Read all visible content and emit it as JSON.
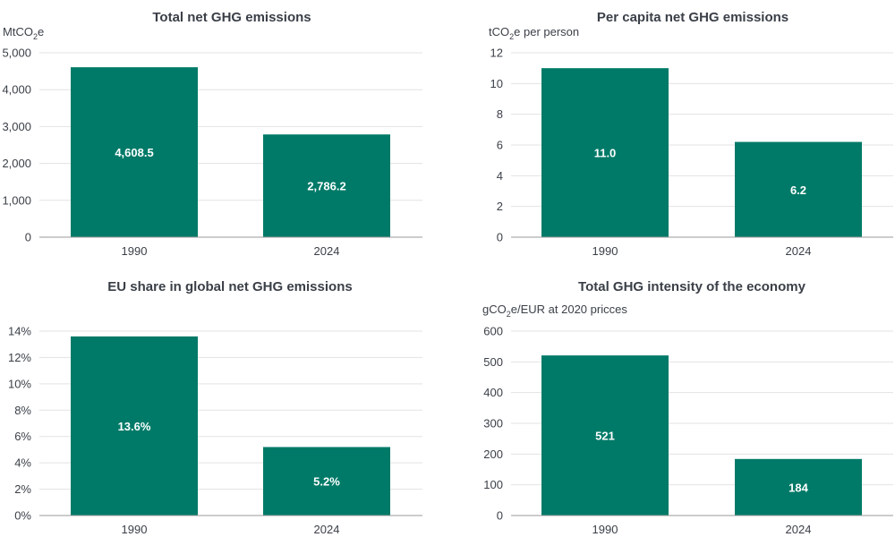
{
  "colors": {
    "bar": "#007a68",
    "grid": "#e3e3e3",
    "text": "#3a3f47",
    "label": "#ffffff"
  },
  "chart_data": [
    {
      "type": "bar",
      "title": "Total net GHG emissions",
      "unit_prefix": "MtCO",
      "unit_sub": "2",
      "unit_suffix": "e",
      "categories": [
        "1990",
        "2024"
      ],
      "values": [
        4608.5,
        2786.2
      ],
      "value_labels": [
        "4,608.5",
        "2,786.2"
      ],
      "ylim": [
        0,
        5000
      ],
      "yticks": [
        0,
        1000,
        2000,
        3000,
        4000,
        5000
      ],
      "ytick_labels": [
        "0",
        "1,000",
        "2,000",
        "3,000",
        "4,000",
        "5,000"
      ],
      "grid": true,
      "legend": "none"
    },
    {
      "type": "bar",
      "title": "Per capita net GHG emissions",
      "unit_prefix": "tCO",
      "unit_sub": "2",
      "unit_suffix": "e per person",
      "categories": [
        "1990",
        "2024"
      ],
      "values": [
        11.0,
        6.2
      ],
      "value_labels": [
        "11.0",
        "6.2"
      ],
      "ylim": [
        0,
        12
      ],
      "yticks": [
        0,
        2,
        4,
        6,
        8,
        10,
        12
      ],
      "ytick_labels": [
        "0",
        "2",
        "4",
        "6",
        "8",
        "10",
        "12"
      ],
      "grid": true,
      "legend": "none"
    },
    {
      "type": "bar",
      "title": "EU share in global net GHG emissions",
      "unit_prefix": "",
      "unit_sub": "",
      "unit_suffix": "",
      "categories": [
        "1990",
        "2024"
      ],
      "values": [
        13.6,
        5.2
      ],
      "value_labels": [
        "13.6%",
        "5.2%"
      ],
      "ylim": [
        0,
        14
      ],
      "yticks": [
        0,
        2,
        4,
        6,
        8,
        10,
        12,
        14
      ],
      "ytick_labels": [
        "0%",
        "2%",
        "4%",
        "6%",
        "8%",
        "10%",
        "12%",
        "14%"
      ],
      "grid": true,
      "legend": "none"
    },
    {
      "type": "bar",
      "title": "Total GHG intensity of the economy",
      "unit_prefix": "gCO",
      "unit_sub": "2",
      "unit_suffix": "e/EUR at 2020 pricces",
      "categories": [
        "1990",
        "2024"
      ],
      "values": [
        521,
        184
      ],
      "value_labels": [
        "521",
        "184"
      ],
      "ylim": [
        0,
        600
      ],
      "yticks": [
        0,
        100,
        200,
        300,
        400,
        500,
        600
      ],
      "ytick_labels": [
        "0",
        "100",
        "200",
        "300",
        "400",
        "500",
        "600"
      ],
      "grid": true,
      "legend": "none"
    }
  ]
}
